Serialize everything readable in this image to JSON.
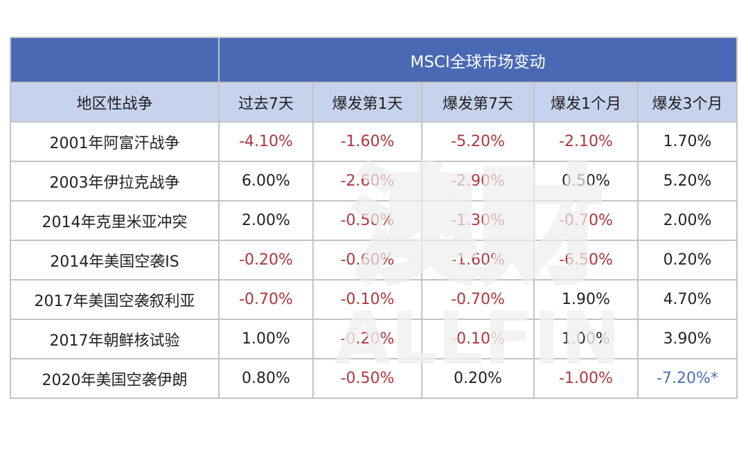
{
  "table": {
    "group_header": "MSCI全球市场变动",
    "row_header": "地区性战争",
    "columns": [
      "过去7天",
      "爆发第1天",
      "爆发第7天",
      "爆发1个月",
      "爆发3个月"
    ],
    "rows": [
      {
        "event": "2001年阿富汗战争",
        "values": [
          "-4.10%",
          "-1.60%",
          "-5.20%",
          "-2.10%",
          "1.70%"
        ]
      },
      {
        "event": "2003年伊拉克战争",
        "values": [
          "6.00%",
          "-2.60%",
          "-2.90%",
          "0.50%",
          "5.20%"
        ]
      },
      {
        "event": "2014年克里米亚冲突",
        "values": [
          "2.00%",
          "-0.50%",
          "-1.30%",
          "-0.70%",
          "2.00%"
        ]
      },
      {
        "event": "2014年美国空袭IS",
        "values": [
          "-0.20%",
          "-0.60%",
          "-1.60%",
          "-6.50%",
          "0.20%"
        ]
      },
      {
        "event": "2017年美国空袭叙利亚",
        "values": [
          "-0.70%",
          "-0.10%",
          "-0.70%",
          "1.90%",
          "4.70%"
        ]
      },
      {
        "event": "2017年朝鲜核试验",
        "values": [
          "1.00%",
          "-0.20%",
          "-0.10%",
          "1.00%",
          "3.90%"
        ]
      },
      {
        "event": "2020年美国空袭伊朗",
        "values": [
          "0.80%",
          "-0.50%",
          "0.20%",
          "-1.00%",
          "-7.20%*"
        ]
      }
    ]
  },
  "watermark": {
    "text_top": "澳财",
    "text_bottom": "ALLFIN"
  },
  "colors": {
    "header_blue": "#4a69b5",
    "subheader_blue": "#c7d3ed",
    "negative_red": "#b3343c",
    "highlight_blue": "#4a6fb8",
    "border": "#c3c3c3"
  }
}
